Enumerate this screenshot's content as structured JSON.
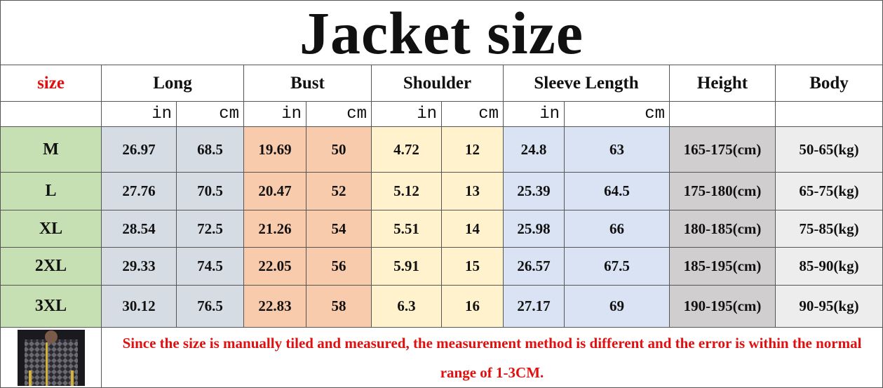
{
  "title": "Jacket size",
  "header": [
    "size",
    "Long",
    "Bust",
    "Shoulder",
    "Sleeve Length",
    "Height",
    "Body"
  ],
  "units": [
    "in",
    "cm",
    "in",
    "cm",
    "in",
    "cm",
    "in",
    "cm"
  ],
  "rows": [
    [
      "M",
      "26.97",
      "68.5",
      "19.69",
      "50",
      "4.72",
      "12",
      "24.8",
      "63",
      "165-175(cm)",
      "50-65(kg)"
    ],
    [
      "L",
      "27.76",
      "70.5",
      "20.47",
      "52",
      "5.12",
      "13",
      "25.39",
      "64.5",
      "175-180(cm)",
      "65-75(kg)"
    ],
    [
      "XL",
      "28.54",
      "72.5",
      "21.26",
      "54",
      "5.51",
      "14",
      "25.98",
      "66",
      "180-185(cm)",
      "75-85(kg)"
    ],
    [
      "2XL",
      "29.33",
      "74.5",
      "22.05",
      "56",
      "5.91",
      "15",
      "26.57",
      "67.5",
      "185-195(cm)",
      "85-90(kg)"
    ],
    [
      "3XL",
      "30.12",
      "76.5",
      "22.83",
      "58",
      "6.3",
      "16",
      "27.17",
      "69",
      "190-195(cm)",
      "90-95(kg)"
    ]
  ],
  "note": "Since the size is manually tiled and measured, the measurement method is different and the error is within the normal range of 1-3CM."
}
